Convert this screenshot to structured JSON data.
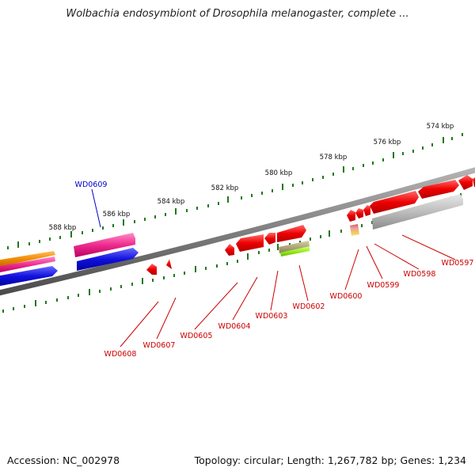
{
  "title": "Wolbachia endosymbiont of Drosophila melanogaster, complete ...",
  "footer": {
    "accession": "Accession: NC_002978",
    "summary": "Topology: circular; Length: 1,267,782 bp; Genes: 1,234"
  },
  "scale": {
    "tick_color": "#1e7a1e",
    "label_color": "#111111",
    "labels": [
      "574 kbp",
      "576 kbp",
      "578 kbp",
      "580 kbp",
      "582 kbp",
      "584 kbp",
      "586 kbp",
      "588 kbp"
    ]
  },
  "backbone_color": "#7f7f7f",
  "genes": [
    {
      "name": "WD0597",
      "color": "#cc0000"
    },
    {
      "name": "WD0598",
      "color": "#cc0000"
    },
    {
      "name": "WD0599",
      "color": "#cc0000"
    },
    {
      "name": "WD0600",
      "color": "#cc0000"
    },
    {
      "name": "WD0602",
      "color": "#cc0000"
    },
    {
      "name": "WD0603",
      "color": "#cc0000"
    },
    {
      "name": "WD0604",
      "color": "#cc0000"
    },
    {
      "name": "WD0605",
      "color": "#cc0000"
    },
    {
      "name": "WD0607",
      "color": "#cc0000"
    },
    {
      "name": "WD0608",
      "color": "#cc0000"
    },
    {
      "name": "WD0609",
      "color": "#0000cc"
    }
  ],
  "feature_colors": {
    "red": "#e00000",
    "pink": "#ee2a8e",
    "blue": "#1111dd",
    "orange": "#f08a00",
    "grey": "#b5b5b5",
    "olive": "#b0a77a",
    "lime": "#99ee22",
    "striped": "#e9a0a0"
  }
}
